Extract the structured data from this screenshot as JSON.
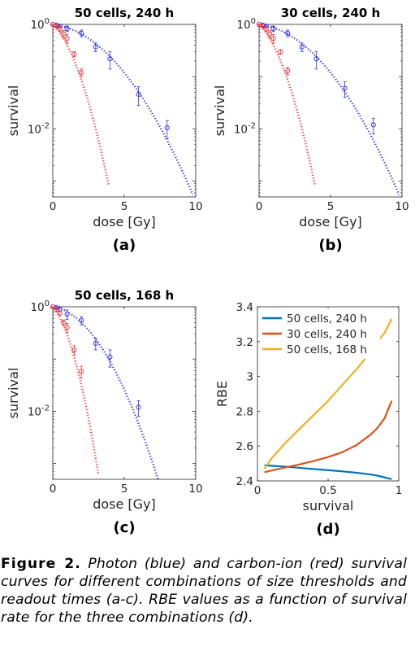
{
  "colors": {
    "photon": "#3333ee",
    "carbon": "#ee3a3a",
    "rbe_series": [
      "#0072bd",
      "#d95319",
      "#edb120"
    ]
  },
  "caption": {
    "label": "Figure 2.",
    "text": "Photon (blue) and carbon-ion (red) survival curves for different combinations of size thresholds and readout times (a-c). RBE values as a function of survival rate for the three combinations (d)."
  },
  "chart_data": [
    {
      "id": "a",
      "panel_label": "(a)",
      "type": "scatter",
      "title": "50 cells, 240 h",
      "xlabel": "dose [Gy]",
      "ylabel": "survival",
      "xlim": [
        0,
        10
      ],
      "ylim": [
        0.0005,
        1
      ],
      "yscale": "log",
      "xticks": [
        "0",
        "5",
        "10"
      ],
      "yticks": [
        {
          "base": "10",
          "exp": "0"
        },
        {
          "base": "10",
          "exp": "-2"
        }
      ],
      "series": [
        {
          "color_key": "photon",
          "x": [
            0,
            0.25,
            0.5,
            1,
            2,
            3,
            4,
            6,
            8
          ],
          "y": [
            1,
            0.97,
            0.93,
            0.83,
            0.68,
            0.37,
            0.22,
            0.046,
            0.0105
          ],
          "err": [
            0.02,
            0.05,
            0.06,
            0.1,
            0.1,
            0.07,
            0.08,
            0.018,
            0.004
          ],
          "fit": {
            "alpha": 0.07,
            "beta": 0.071,
            "xmax": 9.8
          }
        },
        {
          "color_key": "carbon",
          "x": [
            0,
            0.25,
            0.5,
            0.75,
            1,
            1.5,
            2
          ],
          "y": [
            1,
            0.93,
            0.82,
            0.66,
            0.54,
            0.27,
            0.12
          ],
          "err": [
            0.02,
            0.06,
            0.1,
            0.1,
            0.1,
            0.03,
            0.02
          ],
          "fit": {
            "alpha": 0.6,
            "beta": 0.31,
            "xmax": 3.9
          }
        }
      ]
    },
    {
      "id": "b",
      "panel_label": "(b)",
      "type": "scatter",
      "title": "30 cells, 240 h",
      "xlabel": "dose [Gy]",
      "ylabel": "survival",
      "xlim": [
        0,
        10
      ],
      "ylim": [
        0.0005,
        1
      ],
      "yscale": "log",
      "xticks": [
        "0",
        "5",
        "10"
      ],
      "yticks": [
        {
          "base": "10",
          "exp": "0"
        },
        {
          "base": "10",
          "exp": "-2"
        }
      ],
      "series": [
        {
          "color_key": "photon",
          "x": [
            0,
            0.25,
            0.5,
            1,
            2,
            3,
            4,
            6,
            8
          ],
          "y": [
            1,
            0.97,
            0.93,
            0.83,
            0.68,
            0.37,
            0.22,
            0.06,
            0.012
          ],
          "err": [
            0.02,
            0.05,
            0.06,
            0.1,
            0.1,
            0.07,
            0.08,
            0.02,
            0.004
          ],
          "fit": {
            "alpha": 0.07,
            "beta": 0.071,
            "xmax": 9.8
          }
        },
        {
          "color_key": "carbon",
          "x": [
            0,
            0.25,
            0.5,
            0.75,
            1,
            1.5,
            2
          ],
          "y": [
            1,
            0.93,
            0.82,
            0.66,
            0.54,
            0.3,
            0.13
          ],
          "err": [
            0.02,
            0.06,
            0.1,
            0.1,
            0.1,
            0.03,
            0.02
          ],
          "fit": {
            "alpha": 0.6,
            "beta": 0.31,
            "xmax": 3.9
          }
        }
      ]
    },
    {
      "id": "c",
      "panel_label": "(c)",
      "type": "scatter",
      "title": "50 cells, 168 h",
      "xlabel": "dose [Gy]",
      "ylabel": "survival",
      "xlim": [
        0,
        10
      ],
      "ylim": [
        0.0005,
        1
      ],
      "yscale": "log",
      "xticks": [
        "0",
        "5",
        "10"
      ],
      "yticks": [
        {
          "base": "10",
          "exp": "0"
        },
        {
          "base": "10",
          "exp": "-2"
        }
      ],
      "series": [
        {
          "color_key": "photon",
          "x": [
            0,
            0.25,
            0.5,
            1,
            2,
            3,
            4,
            6
          ],
          "y": [
            1,
            0.97,
            0.9,
            0.72,
            0.55,
            0.2,
            0.11,
            0.012
          ],
          "err": [
            0.02,
            0.06,
            0.08,
            0.15,
            0.1,
            0.05,
            0.04,
            0.004
          ],
          "fit": {
            "alpha": 0.09,
            "beta": 0.128,
            "xmax": 7.5
          }
        },
        {
          "color_key": "carbon",
          "x": [
            0,
            0.25,
            0.5,
            0.75,
            1,
            1.5,
            2
          ],
          "y": [
            1,
            0.88,
            0.75,
            0.5,
            0.4,
            0.15,
            0.058
          ],
          "err": [
            0.02,
            0.06,
            0.06,
            0.06,
            0.08,
            0.03,
            0.015
          ],
          "fit": {
            "alpha": 0.72,
            "beta": 0.5,
            "xmax": 3.2
          }
        }
      ]
    },
    {
      "id": "d",
      "panel_label": "(d)",
      "type": "line",
      "title": "",
      "xlabel": "survival",
      "ylabel": "RBE",
      "xlim": [
        0,
        1
      ],
      "ylim": [
        2.4,
        3.4
      ],
      "xticks": [
        "0",
        "0.5",
        "1"
      ],
      "yticks": [
        "2.4",
        "2.6",
        "2.8",
        "3",
        "3.2",
        "3.4"
      ],
      "legend_position": "top-left",
      "x": [
        0.05,
        0.1,
        0.2,
        0.3,
        0.4,
        0.5,
        0.6,
        0.7,
        0.8,
        0.85,
        0.9,
        0.95
      ],
      "series": [
        {
          "name": "50 cells, 240 h",
          "values": [
            2.49,
            2.487,
            2.482,
            2.475,
            2.468,
            2.462,
            2.455,
            2.447,
            2.437,
            2.43,
            2.42,
            2.41
          ]
        },
        {
          "name": "30 cells, 240 h",
          "values": [
            2.45,
            2.46,
            2.478,
            2.495,
            2.515,
            2.537,
            2.565,
            2.605,
            2.665,
            2.705,
            2.76,
            2.86
          ]
        },
        {
          "name": "50 cells, 168 h",
          "values": [
            2.47,
            2.53,
            2.62,
            2.7,
            2.78,
            2.86,
            2.95,
            3.04,
            3.14,
            3.2,
            3.25,
            3.33
          ]
        }
      ]
    }
  ]
}
